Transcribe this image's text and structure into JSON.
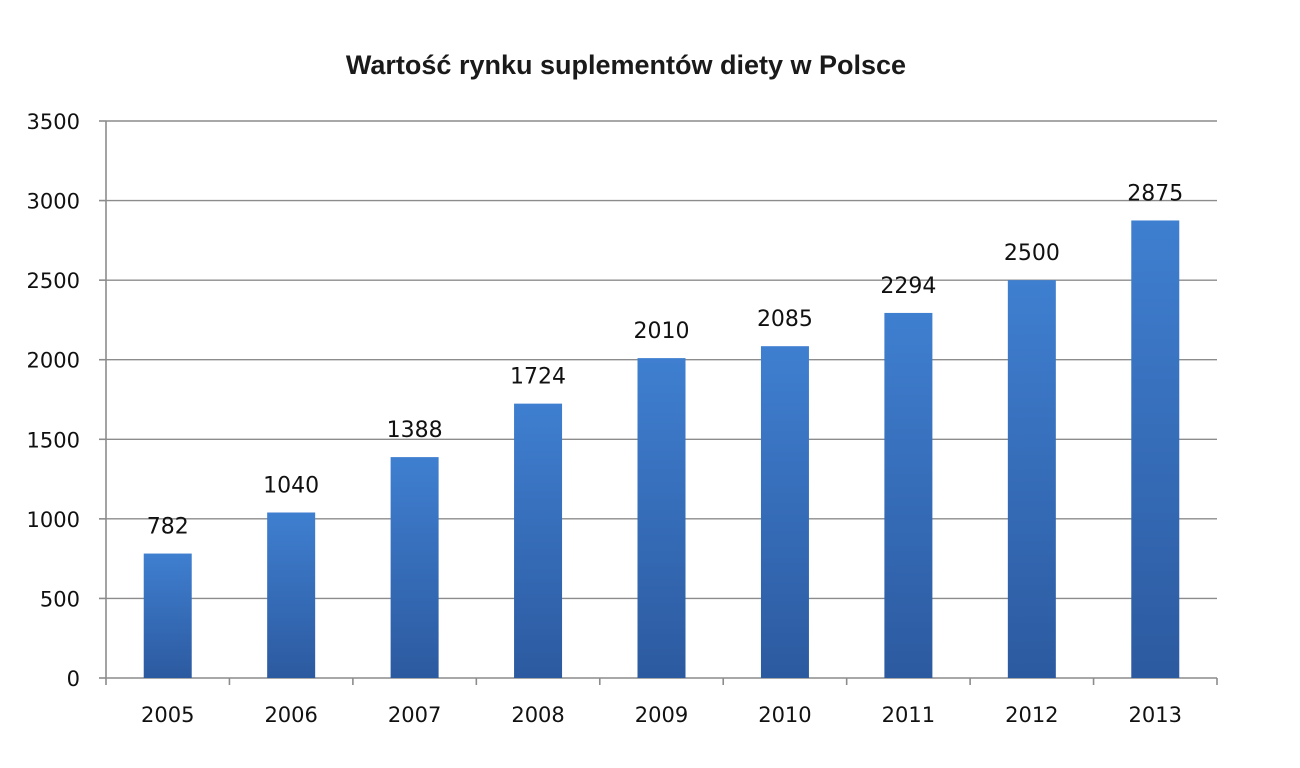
{
  "chart_data": {
    "type": "bar",
    "title": "Wartość rynku suplementów diety w Polsce",
    "categories": [
      "2005",
      "2006",
      "2007",
      "2008",
      "2009",
      "2010",
      "2011",
      "2012",
      "2013"
    ],
    "values": [
      782,
      1040,
      1388,
      1724,
      2010,
      2085,
      2294,
      2500,
      2875
    ],
    "data_labels": [
      "782",
      "1040",
      "1388",
      "1724",
      "2010",
      "2085",
      "2294",
      "2500",
      "2875"
    ],
    "yticks": [
      "0",
      "500",
      "1000",
      "1500",
      "2000",
      "2500",
      "3000",
      "3500"
    ],
    "ylim": [
      0,
      3500
    ],
    "xlabel": "",
    "ylabel": "",
    "grid": true,
    "legend": false,
    "bar_color_top": "#3f7fd0",
    "bar_color_bottom": "#2c5aa0"
  }
}
